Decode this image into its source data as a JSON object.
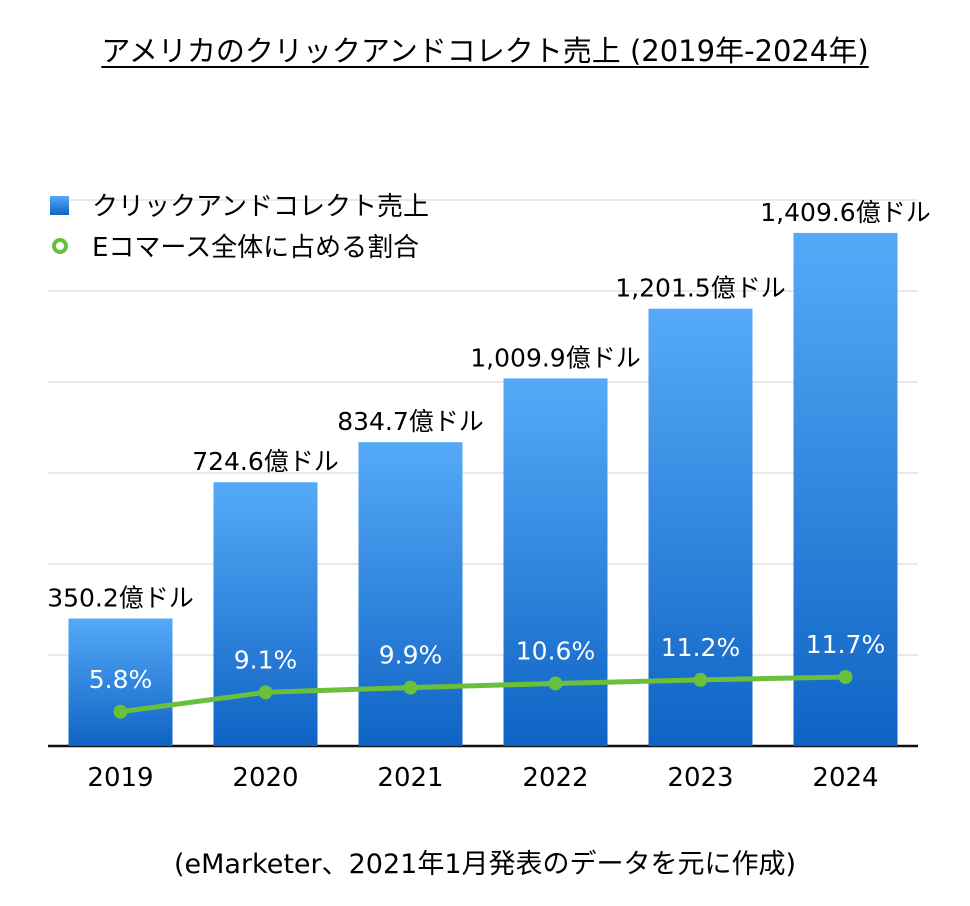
{
  "chart_data": {
    "type": "bar",
    "title": "アメリカのクリックアンドコレクト売上 (2019年-2024年)",
    "source_note": "(eMarketer、2021年1月発表のデータを元に作成)",
    "categories": [
      "2019",
      "2020",
      "2021",
      "2022",
      "2023",
      "2024"
    ],
    "series": [
      {
        "name": "クリックアンドコレクト売上",
        "kind": "bar",
        "unit": "億ドル",
        "values": [
          350.2,
          724.6,
          834.7,
          1009.9,
          1201.5,
          1409.6
        ],
        "labels": [
          "350.2億ドル",
          "724.6億ドル",
          "834.7億ドル",
          "1,009.9億ドル",
          "1,201.5億ドル",
          "1,409.6億ドル"
        ],
        "color": "#2a7fd6"
      },
      {
        "name": "Eコマース全体に占める割合",
        "kind": "line",
        "unit": "%",
        "values": [
          5.8,
          9.1,
          9.9,
          10.6,
          11.2,
          11.7
        ],
        "labels": [
          "5.8%",
          "9.1%",
          "9.9%",
          "10.6%",
          "11.2%",
          "11.7%"
        ],
        "color": "#6abf3b"
      }
    ],
    "ylim": [
      0,
      2000
    ],
    "grid": true,
    "legend_position": "top-left"
  }
}
